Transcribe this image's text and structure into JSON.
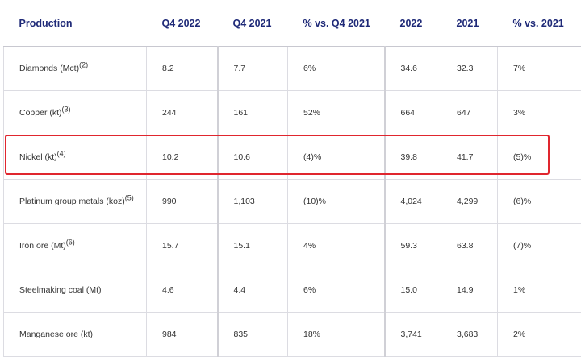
{
  "headers": [
    "Production",
    "Q4 2022",
    "Q4 2021",
    "% vs. Q4 2021",
    "2022",
    "2021",
    "% vs. 2021"
  ],
  "rows": [
    {
      "name": "Diamonds (Mct)",
      "note": "(2)",
      "values": [
        "8.2",
        "7.7",
        "6%",
        "34.6",
        "32.3",
        "7%"
      ]
    },
    {
      "name": "Copper (kt)",
      "note": "(3)",
      "values": [
        "244",
        "161",
        "52%",
        "664",
        "647",
        "3%"
      ]
    },
    {
      "name": "Nickel (kt)",
      "note": "(4)",
      "values": [
        "10.2",
        "10.6",
        "(4)%",
        "39.8",
        "41.7",
        "(5)%"
      ]
    },
    {
      "name": "Platinum group metals (koz)",
      "note": "(5)",
      "values": [
        "990",
        "1,103",
        "(10)%",
        "4,024",
        "4,299",
        "(6)%"
      ]
    },
    {
      "name": "Iron ore (Mt)",
      "note": "(6)",
      "values": [
        "15.7",
        "15.1",
        "4%",
        "59.3",
        "63.8",
        "(7)%"
      ]
    },
    {
      "name": "Steelmaking coal (Mt)",
      "note": "",
      "values": [
        "4.6",
        "4.4",
        "6%",
        "15.0",
        "14.9",
        "1%"
      ]
    },
    {
      "name": "Manganese ore (kt)",
      "note": "",
      "values": [
        "984",
        "835",
        "18%",
        "3,741",
        "3,683",
        "2%"
      ]
    }
  ],
  "highlight_color": "#e0262e",
  "header_color": "#1f2a78"
}
